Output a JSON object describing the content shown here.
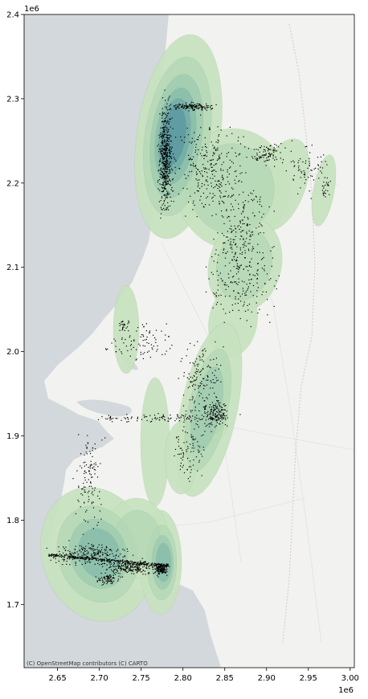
{
  "chart_data": {
    "type": "map",
    "title": "",
    "xlabel": "",
    "ylabel": "",
    "x_offset_label": "1e6",
    "y_offset_label": "1e6",
    "xlim": [
      2.61,
      3.005
    ],
    "ylim": [
      1.625,
      2.4
    ],
    "xticks": [
      "2.65",
      "2.70",
      "2.75",
      "2.80",
      "2.85",
      "2.90",
      "2.95",
      "3.00"
    ],
    "xtick_values": [
      2.65,
      2.7,
      2.75,
      2.8,
      2.85,
      2.9,
      2.95,
      3.0
    ],
    "yticks": [
      "1.7",
      "1.8",
      "1.9",
      "2.0",
      "2.1",
      "2.2",
      "2.3",
      "2.4"
    ],
    "ytick_values": [
      1.7,
      1.8,
      1.9,
      2.0,
      2.1,
      2.2,
      2.3,
      2.4
    ],
    "attribution": "(C) OpenStreetMap contributors (C) CARTO",
    "basemap": "OpenStreetMap / CARTO light",
    "colors": {
      "ocean": "#d3d8dc",
      "land": "#f2f2f0",
      "kde_levels": [
        "#c7e2be",
        "#b3d7b4",
        "#9ccaaf",
        "#84bbab",
        "#6ea9a7",
        "#5a97a0"
      ],
      "points": "#000000"
    }
  }
}
